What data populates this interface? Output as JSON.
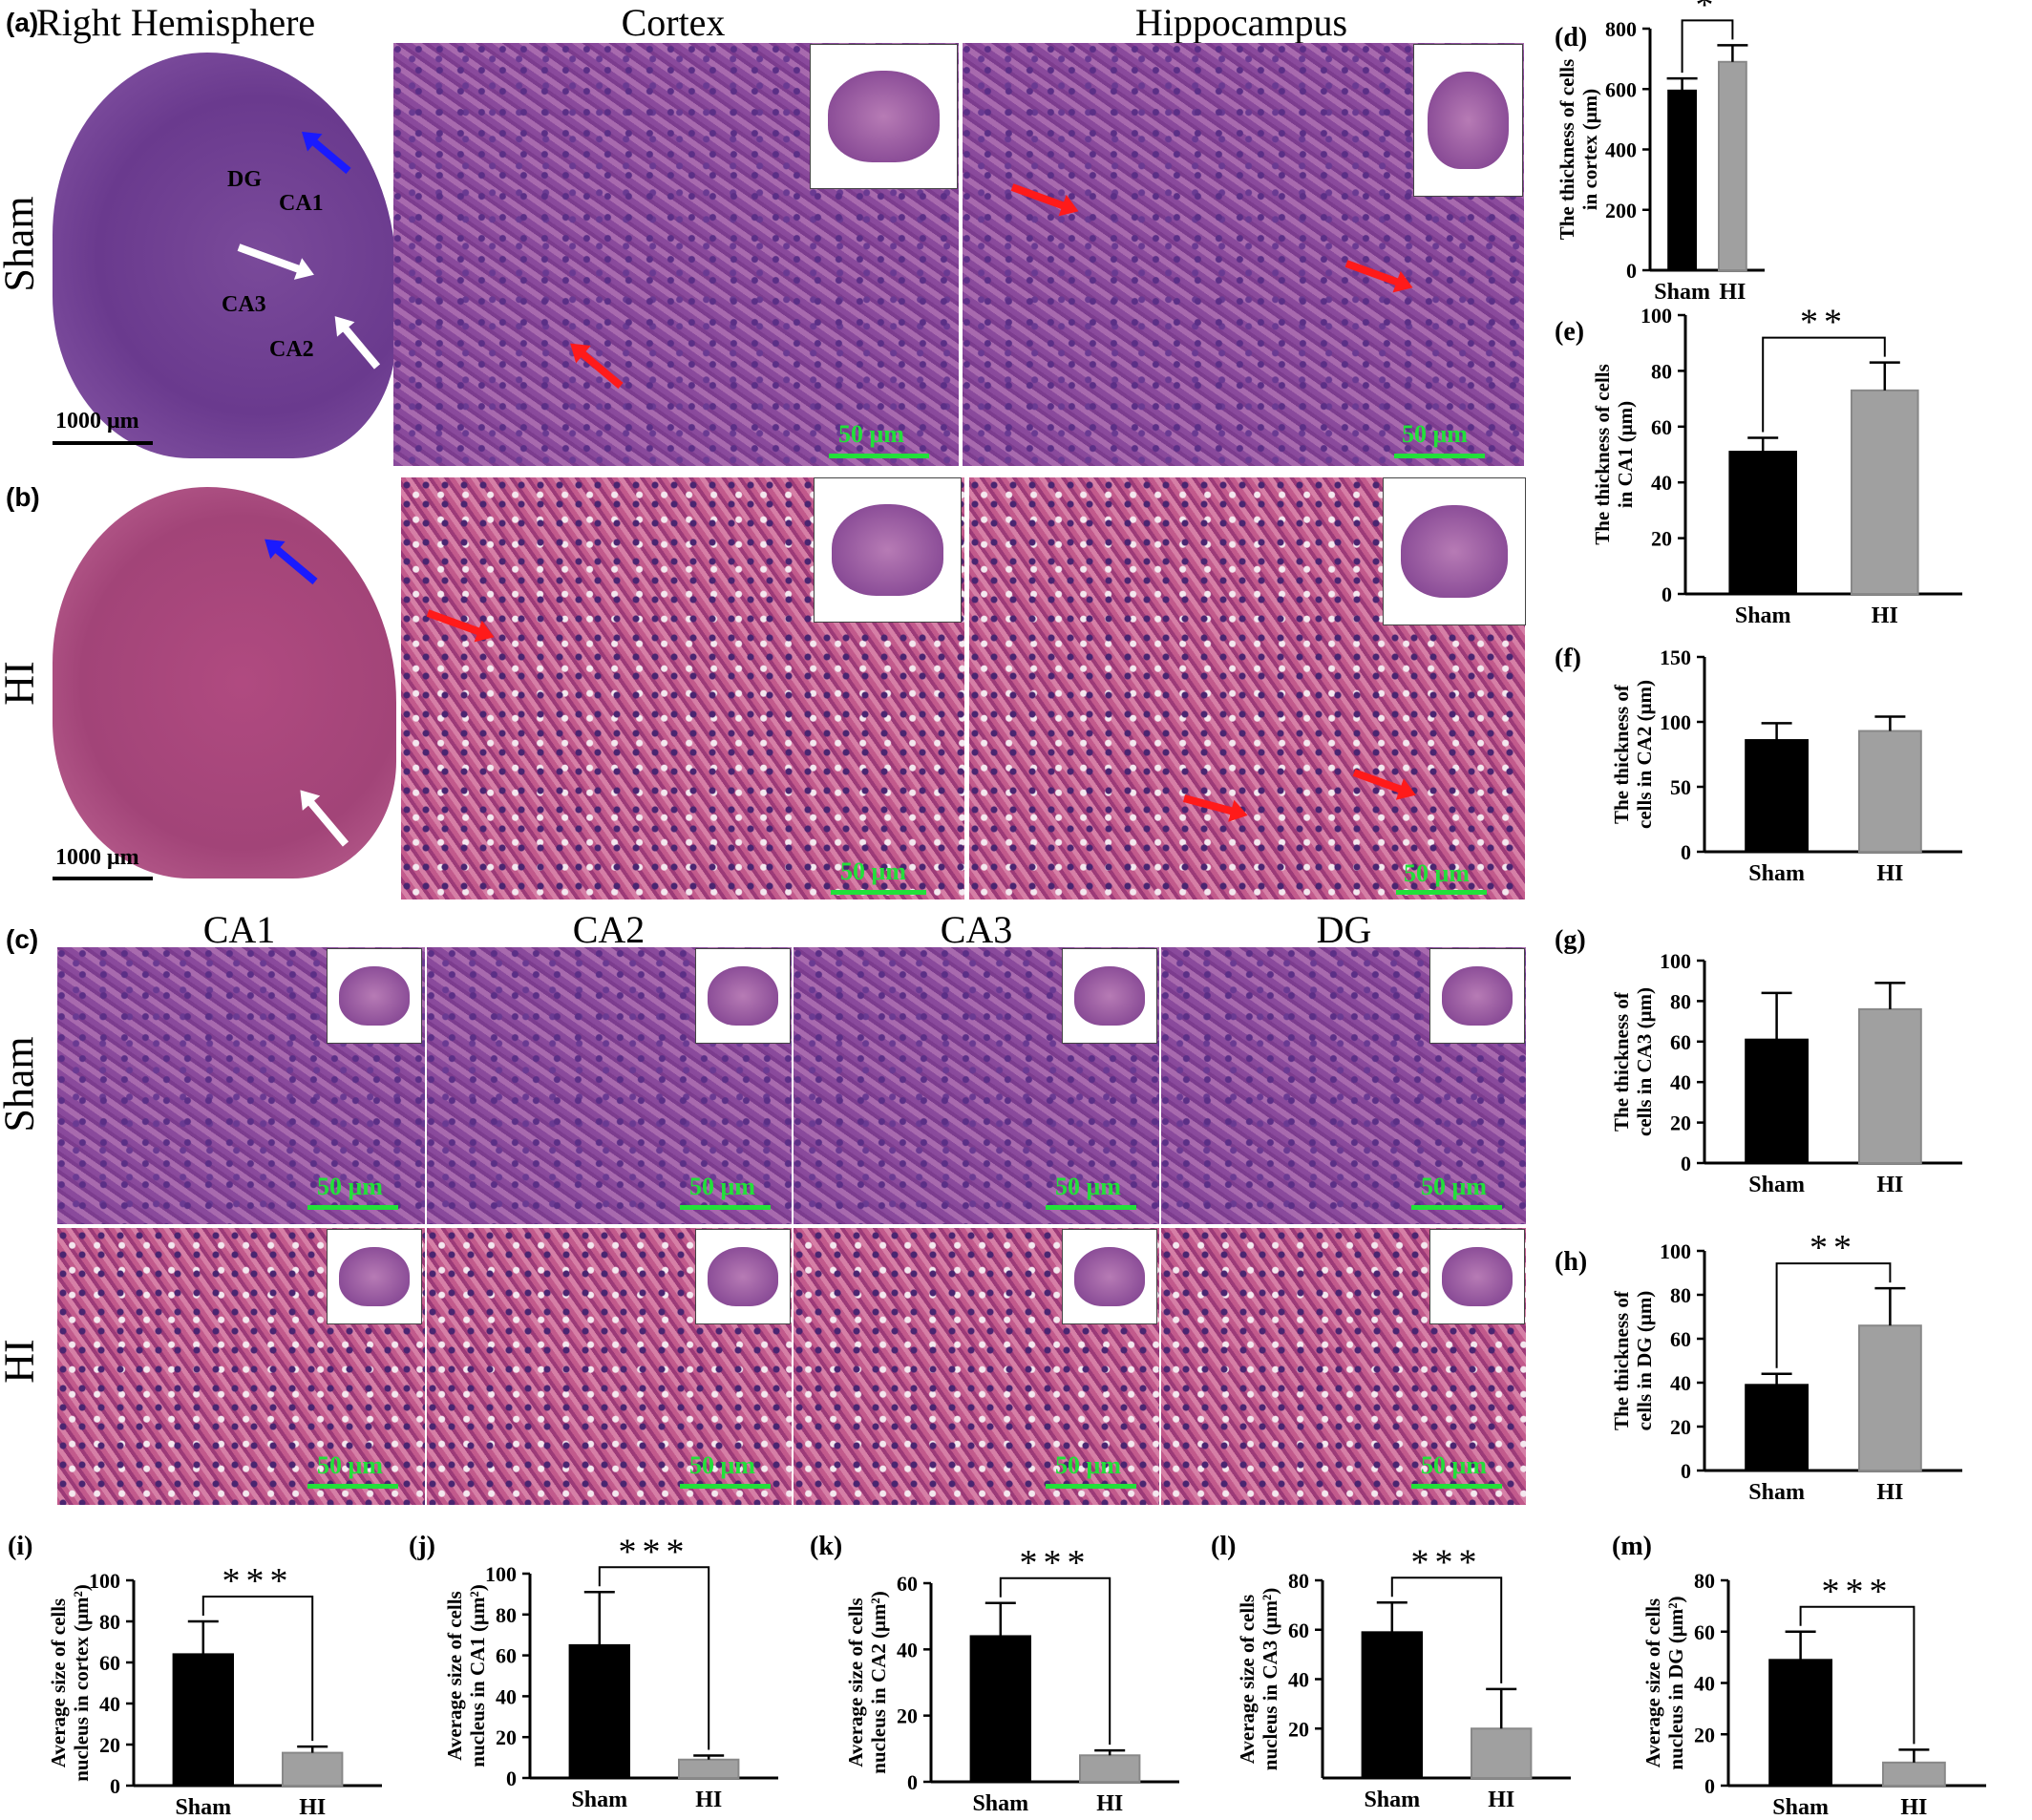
{
  "panels": {
    "a": {
      "letter": "(a)",
      "title": "Right Hemisphere",
      "row_label": "Sham",
      "scale": "1000 μm",
      "regions": [
        "DG",
        "CA1",
        "CA3",
        "CA2"
      ]
    },
    "b": {
      "letter": "(b)",
      "row_label": "HI",
      "scale": "1000 μm"
    },
    "c": {
      "letter": "(c)",
      "row_label_top": "Sham",
      "row_label_bottom": "HI"
    },
    "cols_ab": [
      "Cortex",
      "Hippocampus"
    ],
    "cols_c": [
      "CA1",
      "CA2",
      "CA3",
      "DG"
    ],
    "micro_scale": "50 μm"
  },
  "colors": {
    "sham_bar": "#000000",
    "hi_bar": "#a0a0a0",
    "scale_green": "#22e03a",
    "arrow_blue": "#1a1aff",
    "arrow_red": "#ff1a1a",
    "arrow_white": "#ffffff"
  },
  "chart_data": [
    {
      "id": "d",
      "letter": "(d)",
      "type": "bar",
      "categories": [
        "Sham",
        "HI"
      ],
      "values": [
        595,
        690
      ],
      "errors": [
        40,
        55
      ],
      "ylim": [
        0,
        800
      ],
      "yticks": [
        "0",
        "200",
        "400",
        "600",
        "800"
      ],
      "ylabel": [
        "The thickness of cells",
        "in cortex (μm)"
      ],
      "sig": "*"
    },
    {
      "id": "e",
      "letter": "(e)",
      "type": "bar",
      "categories": [
        "Sham",
        "HI"
      ],
      "values": [
        51,
        73
      ],
      "errors": [
        5,
        10
      ],
      "ylim": [
        0,
        100
      ],
      "yticks": [
        "0",
        "20",
        "40",
        "60",
        "80",
        "100"
      ],
      "ylabel": [
        "The thickness of cells",
        "in CA1 (μm)"
      ],
      "sig": "**"
    },
    {
      "id": "f",
      "letter": "(f)",
      "type": "bar",
      "categories": [
        "Sham",
        "HI"
      ],
      "values": [
        86,
        93
      ],
      "errors": [
        13,
        11
      ],
      "ylim": [
        0,
        150
      ],
      "yticks": [
        "0",
        "50",
        "100",
        "150"
      ],
      "ylabel": [
        "The thickness of",
        "cells in CA2 (μm)"
      ],
      "sig": ""
    },
    {
      "id": "g",
      "letter": "(g)",
      "type": "bar",
      "categories": [
        "Sham",
        "HI"
      ],
      "values": [
        61,
        76
      ],
      "errors": [
        23,
        13
      ],
      "ylim": [
        0,
        100
      ],
      "yticks": [
        "0",
        "20",
        "40",
        "60",
        "80",
        "100"
      ],
      "ylabel": [
        "The thickness of",
        "cells in CA3 (μm)"
      ],
      "sig": ""
    },
    {
      "id": "h",
      "letter": "(h)",
      "type": "bar",
      "categories": [
        "Sham",
        "HI"
      ],
      "values": [
        39,
        66
      ],
      "errors": [
        5,
        17
      ],
      "ylim": [
        0,
        100
      ],
      "yticks": [
        "0",
        "20",
        "40",
        "60",
        "80",
        "100"
      ],
      "ylabel": [
        "The thickness of",
        "cells in DG (μm)"
      ],
      "sig": "**"
    },
    {
      "id": "i",
      "letter": "(i)",
      "type": "bar",
      "categories": [
        "Sham",
        "HI"
      ],
      "values": [
        64,
        16
      ],
      "errors": [
        16,
        3
      ],
      "ylim": [
        0,
        100
      ],
      "yticks": [
        "0",
        "20",
        "40",
        "60",
        "80",
        "100"
      ],
      "ylabel": [
        "Average size of cells",
        "nucleus in cortex (μm²)"
      ],
      "sig": "***"
    },
    {
      "id": "j",
      "letter": "(j)",
      "type": "bar",
      "categories": [
        "Sham",
        "HI"
      ],
      "values": [
        65,
        9
      ],
      "errors": [
        26,
        2
      ],
      "ylim": [
        0,
        100
      ],
      "yticks": [
        "0",
        "20",
        "40",
        "60",
        "80",
        "100"
      ],
      "ylabel": [
        "Average size of cells",
        "nucleus in CA1 (μm²)"
      ],
      "sig": "***"
    },
    {
      "id": "k",
      "letter": "(k)",
      "type": "bar",
      "categories": [
        "Sham",
        "HI"
      ],
      "values": [
        44,
        8
      ],
      "errors": [
        10,
        1.5
      ],
      "ylim": [
        0,
        60
      ],
      "yticks": [
        "0",
        "20",
        "40",
        "60"
      ],
      "ylabel": [
        "Average size of cells",
        "nucleus in CA2 (μm²)"
      ],
      "sig": "***"
    },
    {
      "id": "l",
      "letter": "(l)",
      "type": "bar",
      "categories": [
        "Sham",
        "HI"
      ],
      "values": [
        59,
        20
      ],
      "errors": [
        12,
        16
      ],
      "ylim": [
        0,
        80
      ],
      "yticks": [
        "20",
        "40",
        "60",
        "80"
      ],
      "ylabel": [
        "Average size of cells",
        "nucleus in CA3 (μm²)"
      ],
      "sig": "***"
    },
    {
      "id": "m",
      "letter": "(m)",
      "type": "bar",
      "categories": [
        "Sham",
        "HI"
      ],
      "values": [
        49,
        9
      ],
      "errors": [
        11,
        5
      ],
      "ylim": [
        0,
        80
      ],
      "yticks": [
        "0",
        "20",
        "40",
        "60",
        "80"
      ],
      "ylabel": [
        "Average size of cells",
        "nucleus in DG (μm²)"
      ],
      "sig": "***"
    }
  ]
}
